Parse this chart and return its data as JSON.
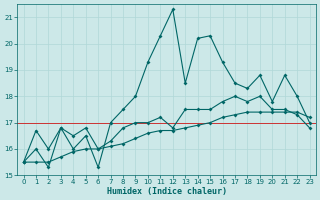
{
  "x": [
    0,
    1,
    2,
    3,
    4,
    5,
    6,
    7,
    8,
    9,
    10,
    11,
    12,
    13,
    14,
    15,
    16,
    17,
    18,
    19,
    20,
    21,
    22,
    23
  ],
  "line1": [
    15.5,
    16.0,
    15.3,
    16.8,
    16.0,
    16.5,
    15.3,
    17.0,
    17.5,
    18.0,
    19.3,
    20.3,
    21.3,
    18.5,
    20.2,
    20.3,
    19.3,
    18.5,
    18.3,
    18.8,
    17.8,
    18.8,
    18.0,
    17.0
  ],
  "line2": [
    15.5,
    16.7,
    16.0,
    16.8,
    16.5,
    16.8,
    16.0,
    16.3,
    16.8,
    17.0,
    17.0,
    17.2,
    16.8,
    17.5,
    17.5,
    17.5,
    17.8,
    18.0,
    17.8,
    18.0,
    17.5,
    17.5,
    17.3,
    16.8
  ],
  "line3": [
    15.5,
    15.5,
    15.5,
    15.7,
    15.9,
    16.0,
    16.0,
    16.1,
    16.2,
    16.4,
    16.6,
    16.7,
    16.7,
    16.8,
    16.9,
    17.0,
    17.2,
    17.3,
    17.4,
    17.4,
    17.4,
    17.4,
    17.4,
    17.2
  ],
  "xlabel": "Humidex (Indice chaleur)",
  "ylim": [
    15,
    21.5
  ],
  "xlim": [
    -0.5,
    23.5
  ],
  "yticks": [
    15,
    16,
    17,
    18,
    19,
    20,
    21
  ],
  "xticks": [
    0,
    1,
    2,
    3,
    4,
    5,
    6,
    7,
    8,
    9,
    10,
    11,
    12,
    13,
    14,
    15,
    16,
    17,
    18,
    19,
    20,
    21,
    22,
    23
  ],
  "line_color": "#006666",
  "bg_color": "#cce8e8",
  "grid_color": "#b0d8d8",
  "marker_size": 2.0,
  "line_width": 0.8,
  "hline_y": 17.0,
  "hline_color": "#cc3333"
}
